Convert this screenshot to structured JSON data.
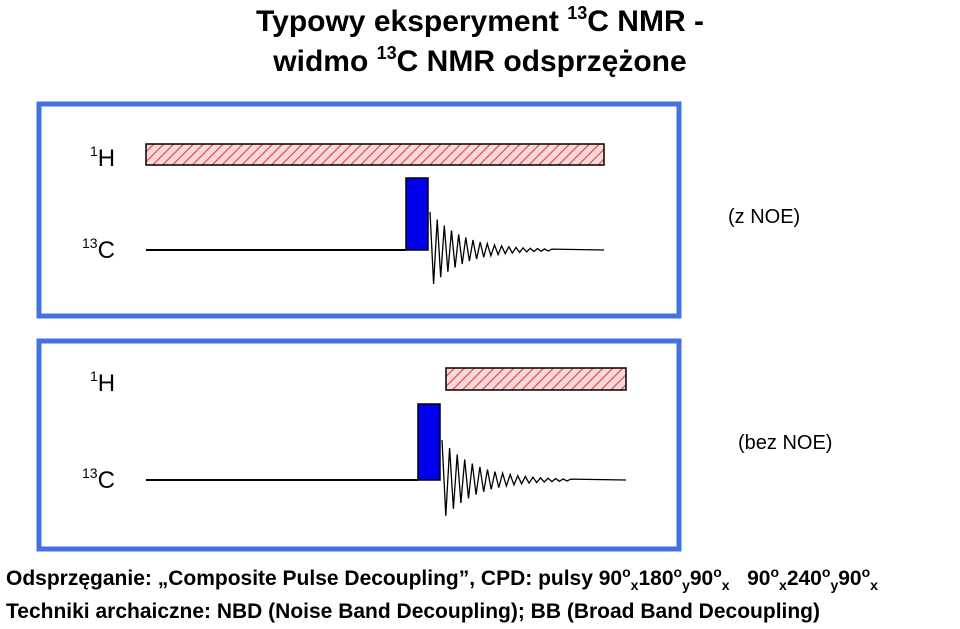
{
  "title": {
    "line1_pre": "Typowy eksperyment ",
    "line1_sup": "13",
    "line1_post": "C NMR -",
    "line2_pre": "widmo ",
    "line2_sup": "13",
    "line2_post": "C NMR odsprzężone"
  },
  "panels": [
    {
      "h_sup": "1",
      "h_label": "H",
      "c_sup": "13",
      "c_label": "C",
      "annotation": "(z NOE)"
    },
    {
      "h_sup": "1",
      "h_label": "H",
      "c_sup": "13",
      "c_label": "C",
      "annotation": "(bez NOE)"
    }
  ],
  "footer": {
    "line1_pre": "Odsprzęganie: „Composite Pulse Decoupling”, CPD:  pulsy 90",
    "seq1": [
      {
        "deg": "90",
        "ax": "x"
      },
      {
        "deg": "180",
        "ax": "y"
      },
      {
        "deg": "90",
        "ax": "x"
      }
    ],
    "seq2": [
      {
        "deg": "90",
        "ax": "x"
      },
      {
        "deg": "240",
        "ax": "y"
      },
      {
        "deg": "90",
        "ax": "x"
      }
    ],
    "line2": "Techniki archaiczne: NBD (Noise Band Decoupling); BB (Broad Band Decoupling)"
  },
  "colors": {
    "frame": "#4472e0",
    "pulse": "#0000ee",
    "decoupler_fill": "#f8d8d8",
    "decoupler_hatch": "#e05050"
  }
}
